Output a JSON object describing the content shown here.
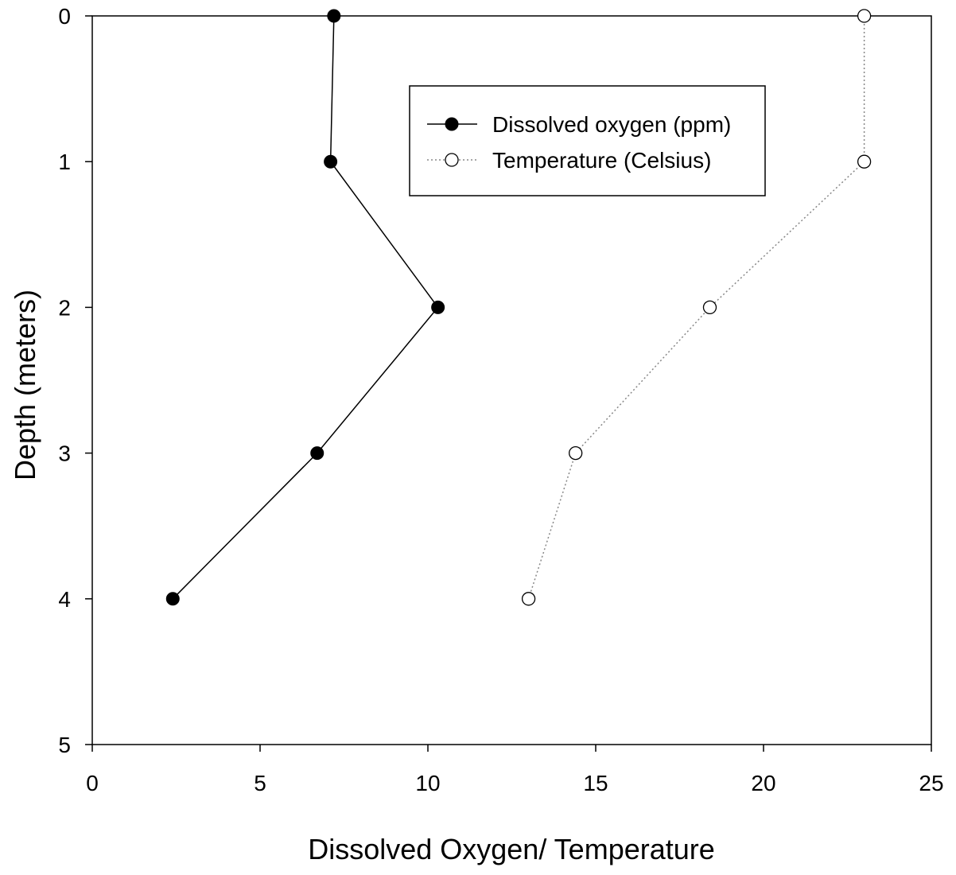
{
  "chart_data": {
    "type": "line",
    "title": "",
    "xlabel": "Dissolved Oxygen/ Temperature",
    "ylabel": "Depth (meters)",
    "xlim": [
      0,
      25
    ],
    "ylim": [
      0,
      5
    ],
    "y_inverted": true,
    "xticks": [
      "0",
      "5",
      "10",
      "15",
      "20",
      "25"
    ],
    "yticks": [
      "0",
      "1",
      "2",
      "3",
      "4",
      "5"
    ],
    "grid": false,
    "legend_position": "top-center",
    "series": [
      {
        "name": "Dissolved oxygen (ppm)",
        "line_style": "solid",
        "marker": "filled-circle",
        "color": "#000000",
        "points": [
          {
            "x": 7.2,
            "y": 0
          },
          {
            "x": 7.1,
            "y": 1
          },
          {
            "x": 10.3,
            "y": 2
          },
          {
            "x": 6.7,
            "y": 3
          },
          {
            "x": 2.4,
            "y": 4
          }
        ]
      },
      {
        "name": "Temperature (Celsius)",
        "line_style": "dotted",
        "marker": "open-circle",
        "color": "#888888",
        "points": [
          {
            "x": 23.0,
            "y": 0
          },
          {
            "x": 23.0,
            "y": 1
          },
          {
            "x": 18.4,
            "y": 2
          },
          {
            "x": 14.4,
            "y": 3
          },
          {
            "x": 13.0,
            "y": 4
          }
        ]
      }
    ]
  }
}
